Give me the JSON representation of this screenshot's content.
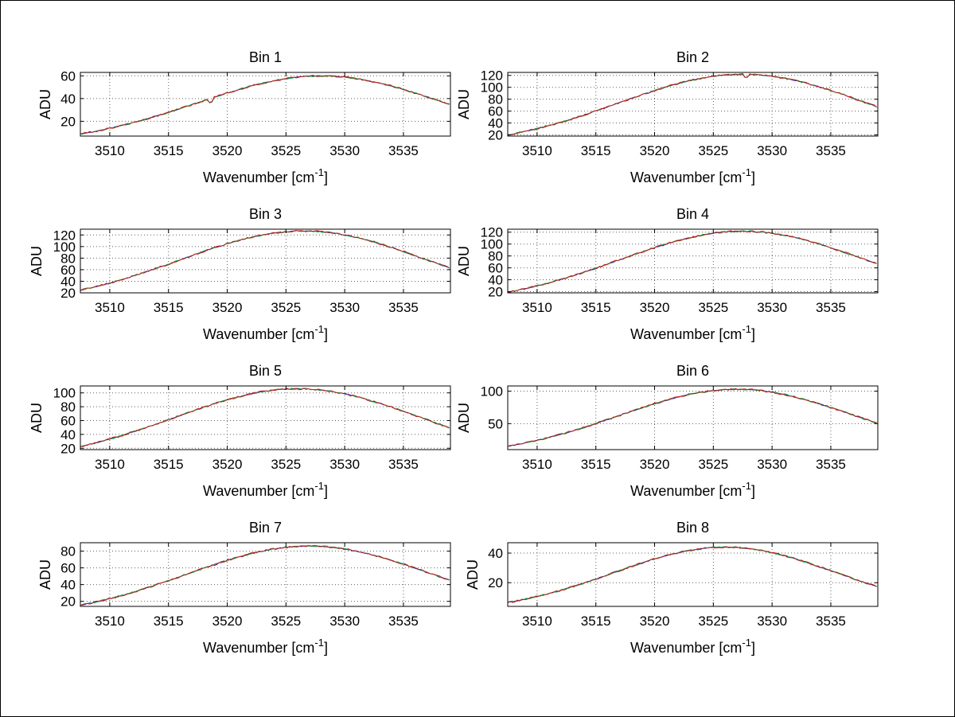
{
  "figure": {
    "background": "#ffffff",
    "border_color": "#000000",
    "grid_color": "#606060",
    "axis_color": "#000000"
  },
  "axis_labels": {
    "ylabel": "ADU",
    "xlabel_base": "Wavenumber [cm",
    "xlabel_sup": "-1",
    "xlabel_close": "]"
  },
  "line_colors": [
    "#2222cc",
    "#11aa33",
    "#cc1111"
  ],
  "chart_data": {
    "type": "line",
    "x": [
      3508,
      3509,
      3510,
      3511,
      3512,
      3513,
      3514,
      3515,
      3516,
      3517,
      3518,
      3519,
      3520,
      3521,
      3522,
      3523,
      3524,
      3525,
      3526,
      3527,
      3528,
      3529,
      3530,
      3531,
      3532,
      3533,
      3534,
      3535,
      3536,
      3537,
      3538,
      3539
    ],
    "xticks": [
      3510,
      3515,
      3520,
      3525,
      3530,
      3535
    ],
    "xlim": [
      3507.5,
      3539
    ],
    "xlabel": "Wavenumber [cm^-1]",
    "ylabel": "ADU",
    "grid": true,
    "legend": false,
    "charts": [
      {
        "title": "Bin 1",
        "yticks": [
          20,
          40,
          60
        ],
        "ylim": [
          7,
          63
        ],
        "values": [
          9.8,
          11.7,
          13.8,
          16.2,
          18.8,
          21.6,
          24.7,
          27.9,
          31.2,
          34.7,
          38.1,
          41.6,
          44.9,
          48.0,
          51.0,
          53.6,
          55.8,
          57.6,
          58.9,
          59.7,
          60.0,
          59.7,
          58.9,
          57.6,
          55.8,
          53.6,
          51.0,
          48.0,
          44.9,
          41.6,
          38.1,
          34.7
        ],
        "spikes": [
          {
            "x": 3518.6,
            "dy": -6
          }
        ]
      },
      {
        "title": "Bin 2",
        "yticks": [
          20,
          40,
          60,
          80,
          100,
          120
        ],
        "ylim": [
          18,
          125
        ],
        "values": [
          21.7,
          25.8,
          30.4,
          35.5,
          41.0,
          47.0,
          53.4,
          60.1,
          67.0,
          74.0,
          81.0,
          87.9,
          94.5,
          100.7,
          106.4,
          111.3,
          115.4,
          118.6,
          120.8,
          121.9,
          121.9,
          120.8,
          118.6,
          115.4,
          111.3,
          106.4,
          100.7,
          94.5,
          87.9,
          81.0,
          74.0,
          67.0
        ],
        "spikes": [
          {
            "x": 3527.8,
            "dy": -9
          }
        ]
      },
      {
        "title": "Bin 3",
        "yticks": [
          20,
          40,
          60,
          80,
          100,
          120
        ],
        "ylim": [
          20,
          130
        ],
        "values": [
          26.9,
          31.6,
          37.0,
          42.7,
          48.9,
          55.6,
          62.5,
          69.7,
          77.1,
          84.3,
          91.6,
          98.4,
          104.9,
          110.7,
          115.8,
          120.1,
          123.4,
          125.7,
          126.9,
          126.9,
          125.7,
          123.4,
          120.1,
          115.8,
          110.7,
          104.9,
          98.4,
          91.6,
          84.3,
          77.1,
          69.7,
          62.5
        ],
        "spikes": []
      },
      {
        "title": "Bin 4",
        "yticks": [
          20,
          40,
          60,
          80,
          100,
          120
        ],
        "ylim": [
          18,
          125
        ],
        "values": [
          21.0,
          25.2,
          29.8,
          35.0,
          40.5,
          46.4,
          52.8,
          59.5,
          66.4,
          73.4,
          80.4,
          87.3,
          94.0,
          100.2,
          105.9,
          110.9,
          115.0,
          118.2,
          120.4,
          121.5,
          121.5,
          120.4,
          118.2,
          115.0,
          110.9,
          105.9,
          100.2,
          94.0,
          87.3,
          80.4,
          73.4,
          66.4
        ],
        "spikes": []
      },
      {
        "title": "Bin 5",
        "yticks": [
          20,
          40,
          60,
          80,
          100
        ],
        "ylim": [
          18,
          110
        ],
        "values": [
          24.4,
          28.6,
          33.2,
          38.2,
          43.6,
          49.3,
          55.1,
          61.3,
          67.3,
          73.5,
          79.3,
          84.9,
          90.0,
          94.7,
          98.6,
          101.8,
          104.1,
          105.5,
          106.0,
          105.5,
          104.1,
          101.8,
          98.6,
          94.7,
          90.0,
          84.9,
          79.3,
          73.5,
          67.3,
          61.3,
          55.1,
          49.3
        ],
        "spikes": []
      },
      {
        "title": "Bin 6",
        "yticks": [
          50,
          100
        ],
        "ylim": [
          10,
          108
        ],
        "values": [
          16.9,
          20.4,
          24.3,
          28.6,
          33.5,
          38.6,
          44.3,
          50.2,
          56.2,
          62.5,
          68.7,
          74.8,
          80.6,
          86.0,
          90.9,
          95.1,
          98.5,
          101.0,
          102.5,
          103.0,
          102.5,
          101.0,
          98.5,
          95.1,
          90.9,
          86.0,
          80.6,
          74.8,
          68.7,
          62.5,
          56.2,
          50.2
        ],
        "spikes": []
      },
      {
        "title": "Bin 7",
        "yticks": [
          20,
          40,
          60,
          80
        ],
        "ylim": [
          14,
          90
        ],
        "values": [
          16.8,
          19.8,
          23.2,
          26.9,
          31.0,
          35.3,
          40.0,
          44.7,
          49.7,
          54.6,
          59.6,
          64.3,
          68.9,
          73.0,
          76.8,
          80.0,
          82.6,
          84.5,
          85.6,
          86.0,
          85.6,
          84.5,
          82.6,
          80.0,
          76.8,
          73.0,
          68.9,
          64.3,
          59.6,
          54.6,
          49.7,
          44.7
        ],
        "spikes": []
      },
      {
        "title": "Bin 8",
        "yticks": [
          20,
          40
        ],
        "ylim": [
          4,
          47
        ],
        "values": [
          7.3,
          8.9,
          10.7,
          12.7,
          14.8,
          17.3,
          19.8,
          22.5,
          25.3,
          28.1,
          30.9,
          33.5,
          36.1,
          38.3,
          40.3,
          41.9,
          43.0,
          43.8,
          44.0,
          43.8,
          43.0,
          41.9,
          40.3,
          38.3,
          36.1,
          33.5,
          30.9,
          28.1,
          25.3,
          22.5,
          19.8,
          17.3
        ],
        "spikes": []
      }
    ]
  }
}
